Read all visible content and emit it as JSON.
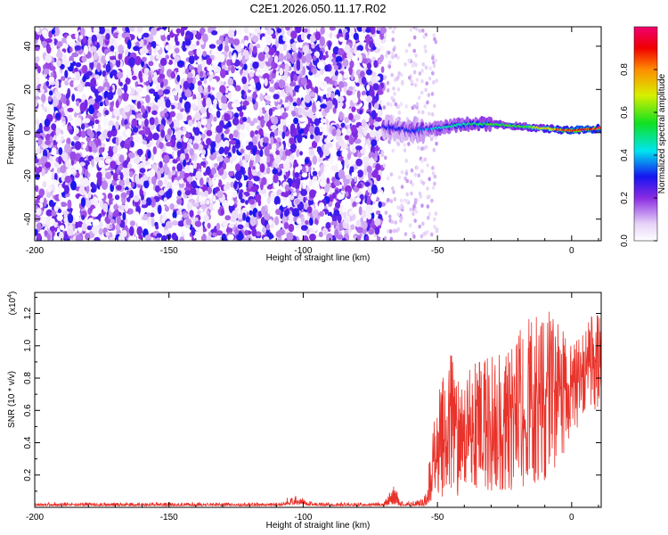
{
  "title": "C2E1.2026.050.11.17.R02",
  "colors": {
    "snr_line": "#e8322a",
    "background": "#ffffff",
    "axis": "#000000"
  },
  "chart_data": [
    {
      "type": "heatmap",
      "name": "spectrogram",
      "xlabel": "Height of straight line (km)",
      "ylabel": "Frequency (Hz)",
      "xlim": [
        -200,
        11
      ],
      "ylim": [
        -50,
        49
      ],
      "xticks": [
        {
          "value": -200,
          "label": "-200"
        },
        {
          "value": -150,
          "label": "-150"
        },
        {
          "value": -100,
          "label": "-100"
        },
        {
          "value": -50,
          "label": "-50"
        },
        {
          "value": 0,
          "label": "0"
        }
      ],
      "yticks": [
        {
          "value": -40,
          "label": "-40"
        },
        {
          "value": -20,
          "label": "-20"
        },
        {
          "value": 0,
          "label": "0"
        },
        {
          "value": 20,
          "label": "20"
        },
        {
          "value": 40,
          "label": "40"
        }
      ],
      "noise_region": {
        "x_from": -200,
        "x_to": -70,
        "amplitude_range": [
          0.0,
          0.3
        ]
      },
      "signal_track": {
        "x": [
          -70,
          -60,
          -50,
          -40,
          -30,
          -20,
          -10,
          0,
          11
        ],
        "freq_hz": [
          3,
          1,
          2,
          4,
          4,
          3,
          2,
          1,
          2
        ],
        "amplitude": [
          0.28,
          0.3,
          0.45,
          0.5,
          0.55,
          0.55,
          0.7,
          0.95,
          0.9
        ]
      },
      "colorbar": {
        "label": "Normalized spectral amplitude",
        "range": [
          0.0,
          1.0
        ],
        "ticks": [
          {
            "value": 0.0,
            "label": "0.0"
          },
          {
            "value": 0.2,
            "label": "0.2"
          },
          {
            "value": 0.4,
            "label": "0.4"
          },
          {
            "value": 0.6,
            "label": "0.6"
          },
          {
            "value": 0.8,
            "label": "0.8"
          }
        ]
      }
    },
    {
      "type": "line",
      "name": "snr",
      "xlabel": "Height of straight line (km)",
      "ylabel": "SNR (10 * v/v)",
      "y_multiplier_label": "(x10",
      "y_multiplier_exp": "4",
      "xlim": [
        -200,
        11
      ],
      "ylim": [
        0,
        1.33
      ],
      "xticks": [
        {
          "value": -200,
          "label": "-200"
        },
        {
          "value": -150,
          "label": "-150"
        },
        {
          "value": -100,
          "label": "-100"
        },
        {
          "value": -50,
          "label": "-50"
        },
        {
          "value": 0,
          "label": "0"
        }
      ],
      "yticks": [
        {
          "value": 0.2,
          "label": "0.2"
        },
        {
          "value": 0.4,
          "label": "0.4"
        },
        {
          "value": 0.6,
          "label": "0.6"
        },
        {
          "value": 0.8,
          "label": "0.8"
        },
        {
          "value": 1.0,
          "label": "1.0"
        },
        {
          "value": 1.2,
          "label": "1.2"
        }
      ],
      "envelope": {
        "x": [
          -200,
          -110,
          -103,
          -96,
          -70,
          -66,
          -64,
          -55,
          -50,
          -45,
          -40,
          -30,
          -20,
          -10,
          0,
          5,
          10,
          11
        ],
        "low": [
          0.01,
          0.01,
          0.02,
          0.01,
          0.01,
          0.02,
          0.01,
          0.01,
          0.05,
          0.05,
          0.05,
          0.08,
          0.1,
          0.15,
          0.4,
          0.6,
          0.6,
          0.6
        ],
        "high": [
          0.03,
          0.03,
          0.08,
          0.03,
          0.03,
          0.15,
          0.04,
          0.05,
          0.7,
          0.95,
          0.85,
          0.95,
          1.1,
          1.32,
          1.0,
          1.1,
          1.3,
          1.1
        ]
      },
      "series": [
        {
          "name": "SNR",
          "color": "#e8322a"
        }
      ]
    }
  ]
}
